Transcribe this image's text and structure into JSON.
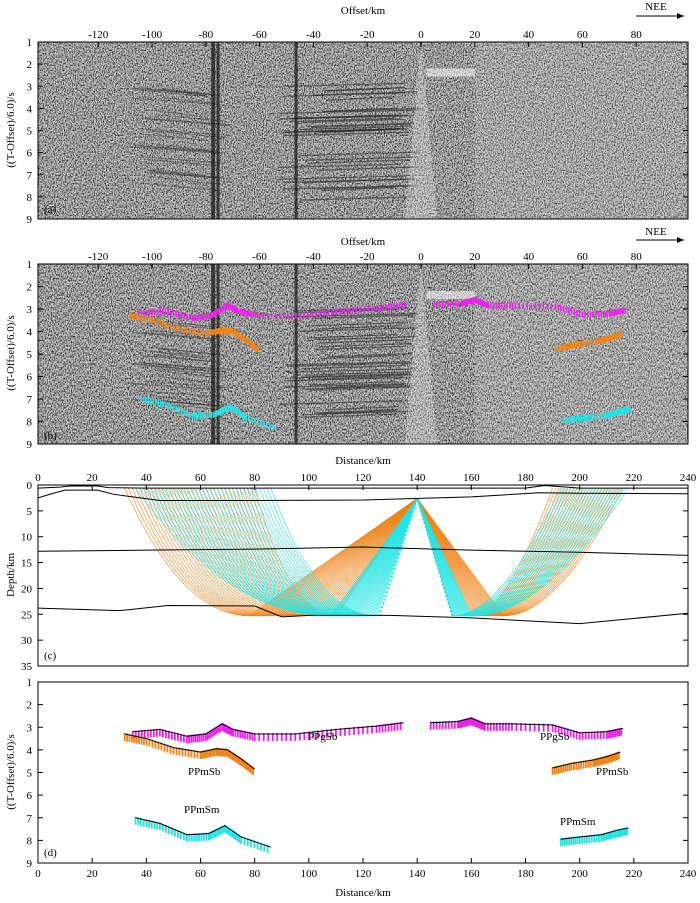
{
  "colors": {
    "ppgsb": "#ee22ee",
    "ppmsb": "#f08418",
    "ppmsm": "#22e4e4",
    "model": "#000000",
    "seismic_dark": "#1a1a1a",
    "seismic_light": "#e8e8e8"
  },
  "panel_a": {
    "label": "(a)",
    "top_axis_title": "Offset/km",
    "top_ticks": [
      "-120",
      "-100",
      "-80",
      "-60",
      "-40",
      "-20",
      "0",
      "20",
      "40",
      "60",
      "80"
    ],
    "direction_label": "NEE",
    "ylabel": "((T-Offset)/6.0)/s",
    "y_ticks": [
      "1",
      "2",
      "3",
      "4",
      "5",
      "6",
      "7",
      "8",
      "9"
    ]
  },
  "panel_b": {
    "label": "(b)",
    "top_axis_title": "Offset/km",
    "top_ticks": [
      "-120",
      "-100",
      "-80",
      "-60",
      "-40",
      "-20",
      "0",
      "20",
      "40",
      "60",
      "80"
    ],
    "direction_label": "NEE",
    "ylabel": "((T-Offset)/6.0)/s",
    "y_ticks": [
      "1",
      "2",
      "3",
      "4",
      "5",
      "6",
      "7",
      "8",
      "9"
    ]
  },
  "panel_c": {
    "label": "(c)",
    "top_axis_title": "Distance/km",
    "x_ticks": [
      "0",
      "20",
      "40",
      "60",
      "80",
      "100",
      "120",
      "140",
      "160",
      "180",
      "200",
      "220",
      "240"
    ],
    "ylabel": "Depth/km",
    "y_ticks": [
      "0",
      "5",
      "10",
      "15",
      "20",
      "25",
      "30",
      "35"
    ],
    "source_km": 140,
    "depth_range": [
      0,
      35
    ],
    "distance_range": [
      0,
      240
    ]
  },
  "panel_d": {
    "label": "(d)",
    "xlabel": "Distance/km",
    "x_ticks": [
      "0",
      "20",
      "40",
      "60",
      "80",
      "100",
      "120",
      "140",
      "160",
      "180",
      "200",
      "220",
      "240"
    ],
    "ylabel": "((T-Offset)/6.0)/s",
    "y_ticks": [
      "1",
      "2",
      "3",
      "4",
      "5",
      "6",
      "7",
      "8",
      "9"
    ],
    "phase_labels": [
      "PPgSb",
      "PPgSb",
      "PPmSb",
      "PPmSb",
      "PPmSm",
      "PPmSm"
    ]
  },
  "chart_data": {
    "type": "line",
    "title": "",
    "xlabel": "Distance/km",
    "ylabel": "((T-Offset)/6.0)/s",
    "xlim": [
      0,
      240
    ],
    "ylim": [
      9,
      1
    ],
    "series": [
      {
        "name": "PPgSb (left)",
        "color_key": "ppgsb",
        "x": [
          35,
          45,
          55,
          62,
          68,
          72,
          80,
          95,
          110,
          125,
          135
        ],
        "y": [
          3.2,
          3.1,
          3.4,
          3.3,
          2.85,
          3.1,
          3.3,
          3.3,
          3.1,
          2.95,
          2.8
        ]
      },
      {
        "name": "PPgSb (right)",
        "color_key": "ppgsb",
        "x": [
          145,
          155,
          160,
          165,
          175,
          190,
          200,
          210,
          216
        ],
        "y": [
          2.8,
          2.75,
          2.6,
          2.85,
          2.85,
          2.9,
          3.25,
          3.2,
          3.05
        ]
      },
      {
        "name": "PPmSb (left)",
        "color_key": "ppmsb",
        "x": [
          32,
          40,
          50,
          60,
          66,
          70,
          75,
          80
        ],
        "y": [
          3.3,
          3.5,
          3.9,
          4.1,
          3.95,
          4.0,
          4.4,
          4.85
        ]
      },
      {
        "name": "PPmSb (right)",
        "color_key": "ppmsb",
        "x": [
          190,
          197,
          205,
          210,
          215
        ],
        "y": [
          4.8,
          4.6,
          4.45,
          4.3,
          4.1
        ]
      },
      {
        "name": "PPmSm (left)",
        "color_key": "ppmsm",
        "x": [
          36,
          45,
          55,
          63,
          69,
          75,
          86
        ],
        "y": [
          7.0,
          7.25,
          7.75,
          7.7,
          7.35,
          7.85,
          8.3
        ]
      },
      {
        "name": "PPmSm (right)",
        "color_key": "ppmsm",
        "x": [
          193,
          200,
          208,
          214,
          218
        ],
        "y": [
          7.95,
          7.85,
          7.75,
          7.55,
          7.45
        ]
      }
    ],
    "model_interfaces_depth_km": [
      {
        "name": "topography",
        "x": [
          0,
          8,
          12,
          22,
          26,
          40,
          100,
          150,
          180,
          187,
          192,
          200,
          240
        ],
        "y": [
          0.6,
          0.4,
          0.2,
          0.2,
          0.5,
          0.6,
          0.6,
          0.6,
          0.6,
          0.1,
          0.3,
          0.6,
          0.6
        ]
      },
      {
        "name": "basement",
        "x": [
          0,
          5,
          10,
          22,
          28,
          45,
          80,
          120,
          160,
          185,
          200,
          240
        ],
        "y": [
          2.5,
          1.7,
          1.0,
          1.0,
          1.8,
          3.0,
          3.0,
          2.9,
          2.3,
          1.5,
          1.6,
          1.7
        ]
      },
      {
        "name": "upper-crust",
        "x": [
          0,
          40,
          80,
          120,
          160,
          200,
          240
        ],
        "y": [
          12.8,
          12.6,
          12.4,
          12.0,
          12.6,
          13.0,
          13.6
        ]
      },
      {
        "name": "moho",
        "x": [
          0,
          30,
          48,
          80,
          90,
          100,
          130,
          160,
          200,
          240
        ],
        "y": [
          23.8,
          24.3,
          23.3,
          23.4,
          25.5,
          25.2,
          25.2,
          25.7,
          26.8,
          24.8
        ]
      }
    ]
  }
}
